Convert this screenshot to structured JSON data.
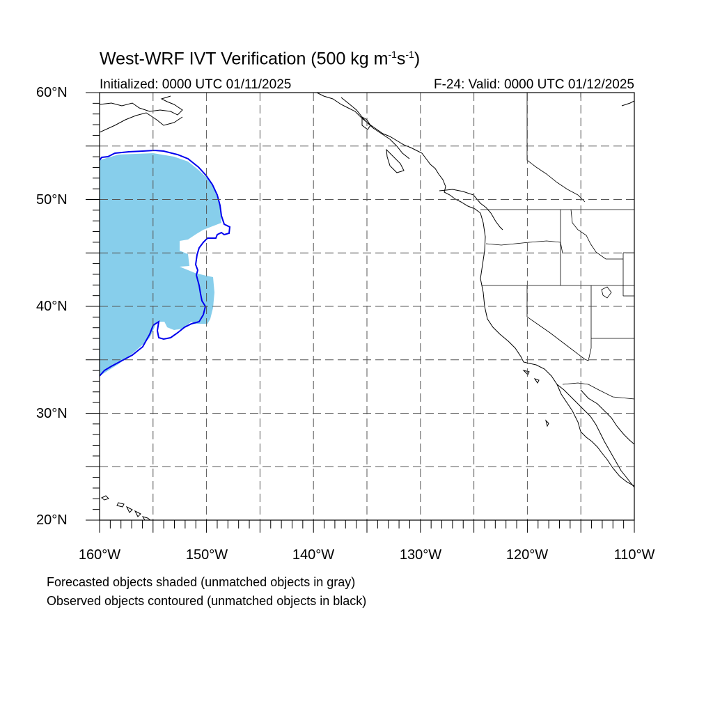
{
  "title": {
    "main": "West-WRF IVT Verification (500 kg m",
    "exp1": "-1",
    "mid": "s",
    "exp2": "-1",
    "end": ")"
  },
  "subtitle_left": "Initialized: 0000 UTC 01/11/2025",
  "subtitle_right": "F-24: Valid: 0000 UTC 01/12/2025",
  "lat_labels": [
    "60°N",
    "50°N",
    "40°N",
    "30°N",
    "20°N"
  ],
  "lon_labels": [
    "160°W",
    "150°W",
    "140°W",
    "130°W",
    "120°W",
    "110°W"
  ],
  "notes": {
    "forecast": "Forecasted objects shaded (unmatched objects in gray)",
    "observed": "Observed objects contoured (unmatched objects in black)"
  },
  "map": {
    "lon_range": [
      -160,
      -110
    ],
    "lat_range": [
      20,
      60
    ],
    "grid_lon_step": 5,
    "grid_lat_step": 5,
    "gridlines": "dashed",
    "colors": {
      "forecast_fill": "#87ceeb",
      "observed_contour": "#0000ee",
      "coastline": "#000000",
      "grid": "#555555"
    }
  }
}
